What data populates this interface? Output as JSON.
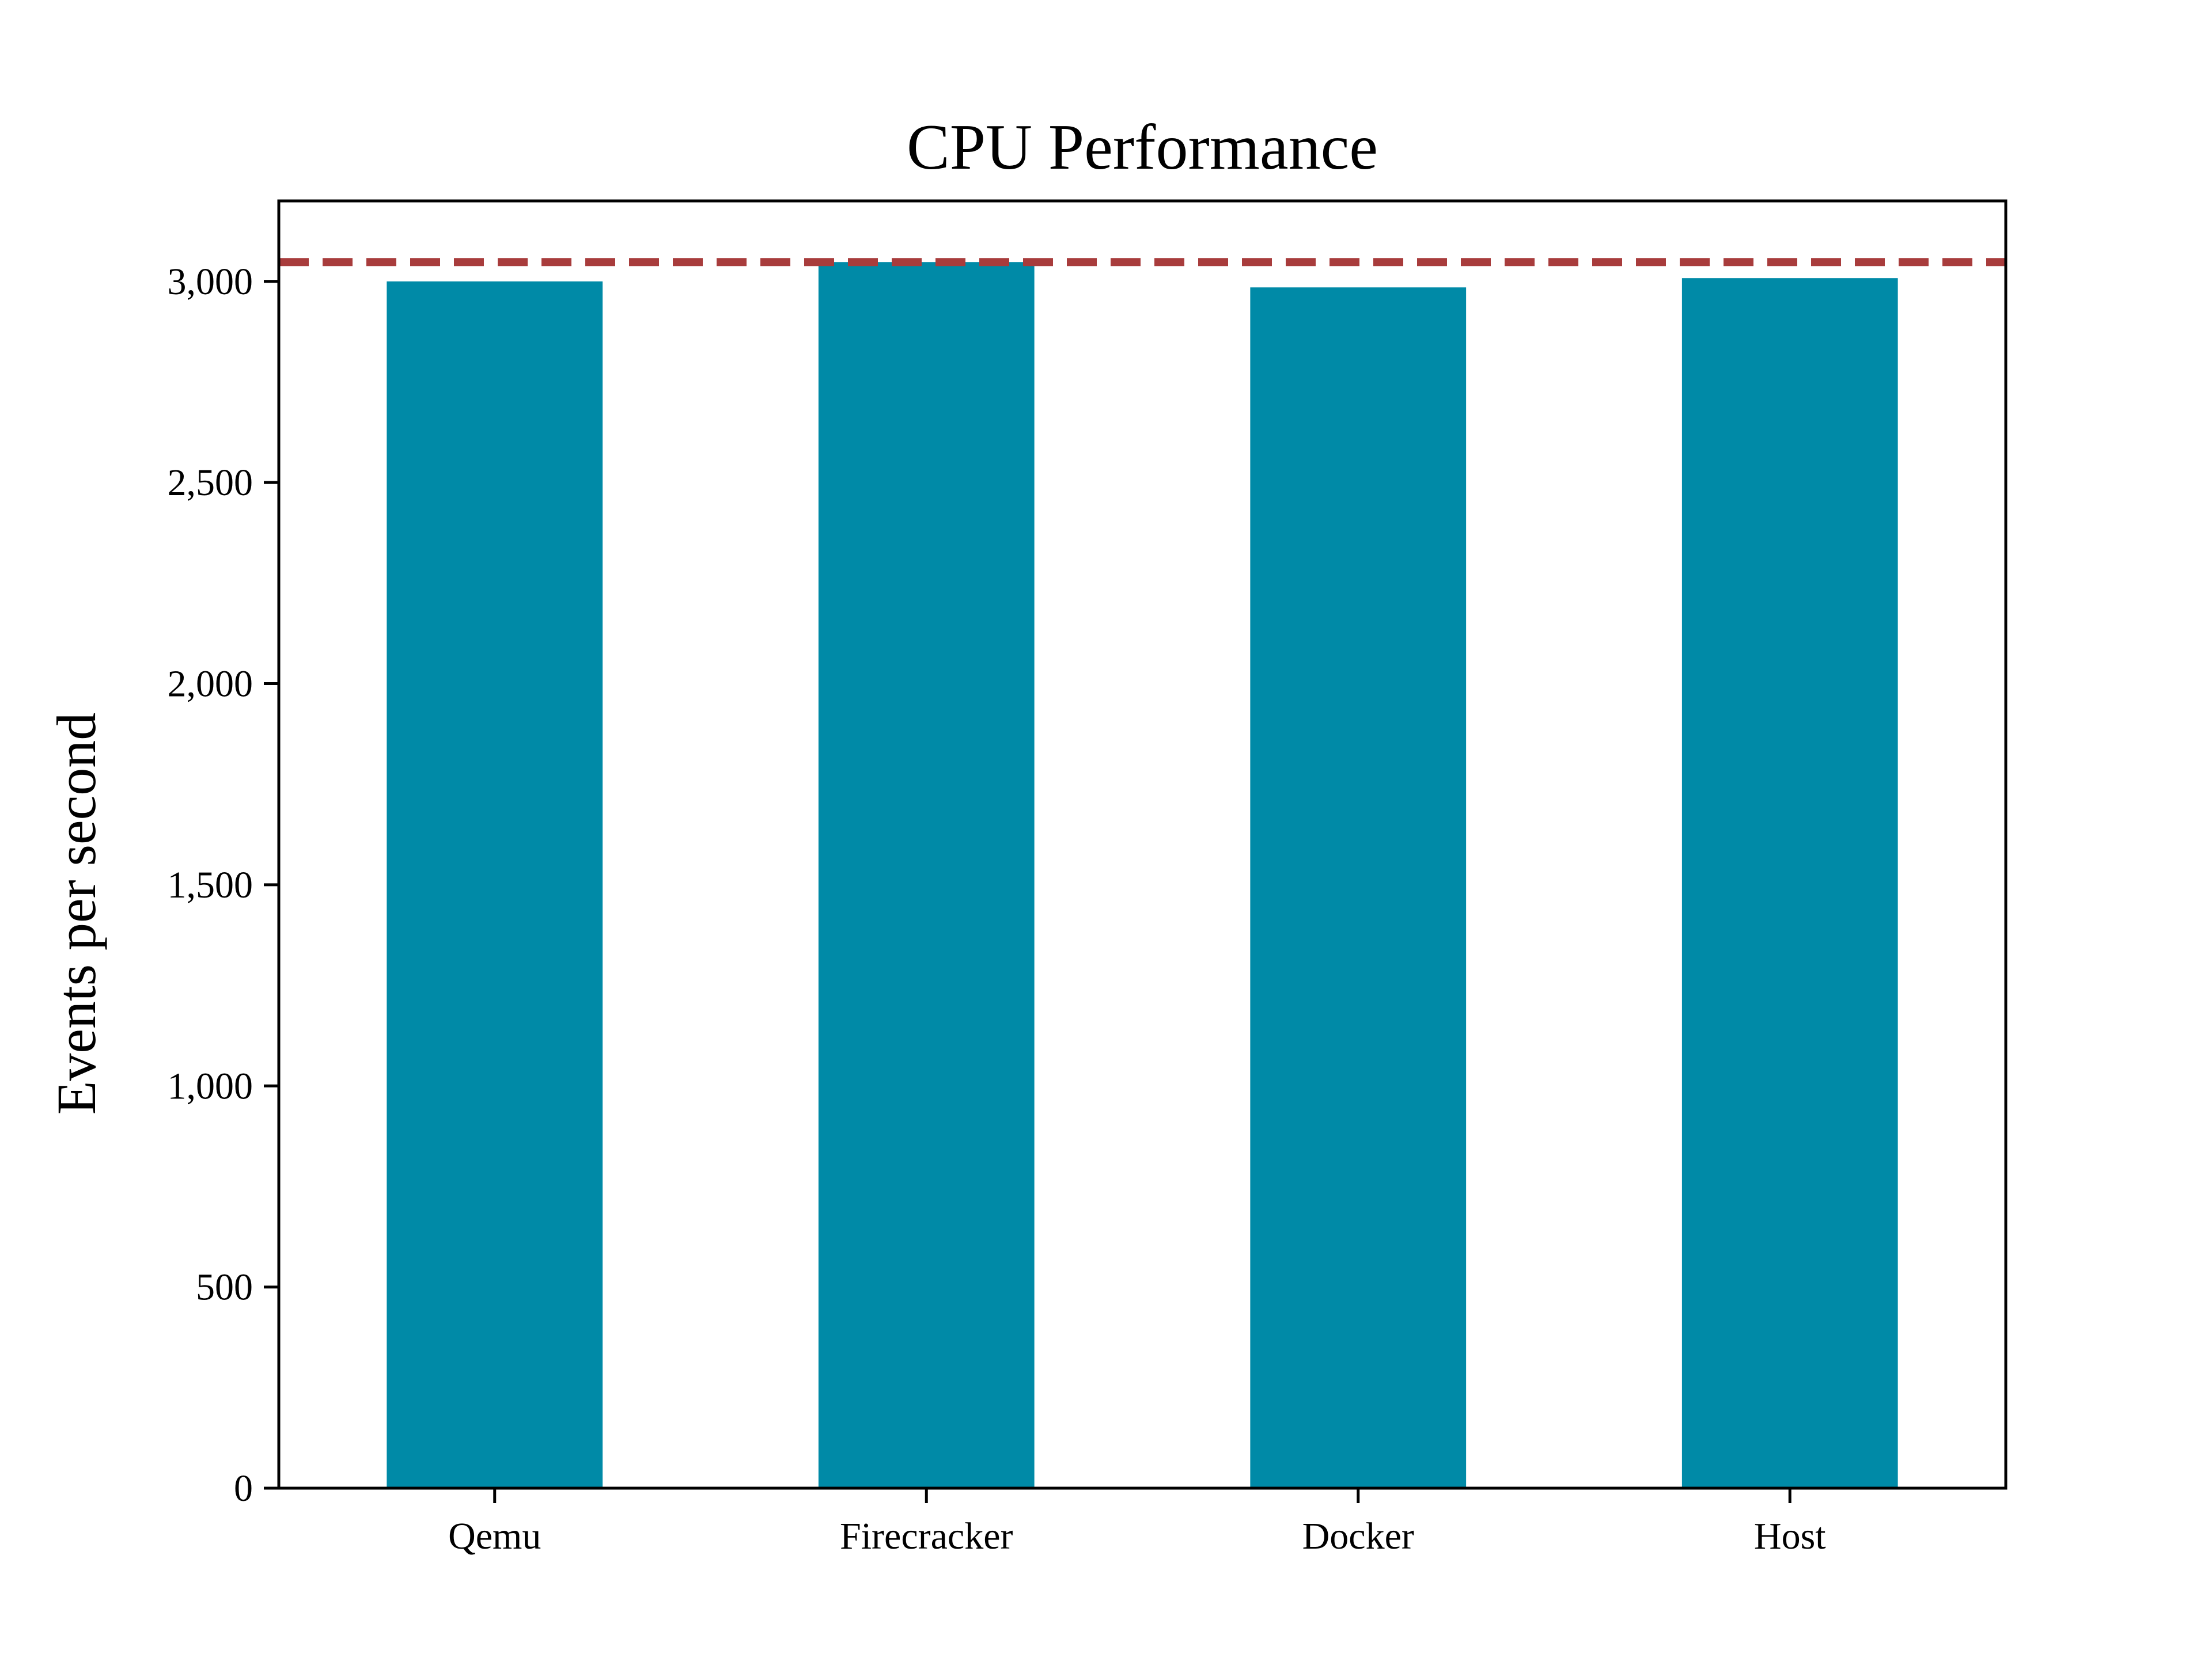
{
  "chart_data": {
    "type": "bar",
    "title": "CPU Performance",
    "xlabel": "",
    "ylabel": "Events per second",
    "categories": [
      "Qemu",
      "Firecracker",
      "Docker",
      "Host"
    ],
    "values": [
      3000,
      3048,
      2985,
      3008
    ],
    "ylim": [
      0,
      3200
    ],
    "yticks": [
      0,
      500,
      1000,
      1500,
      2000,
      2500,
      3000
    ],
    "ytick_labels": [
      "0",
      "500",
      "1,000",
      "1,500",
      "2,000",
      "2,500",
      "3,000"
    ],
    "reference_line": {
      "value": 3048,
      "style": "dashed",
      "color": "#a83c3c"
    },
    "bar_color": "#008aa7",
    "grid": false,
    "legend": "none"
  }
}
